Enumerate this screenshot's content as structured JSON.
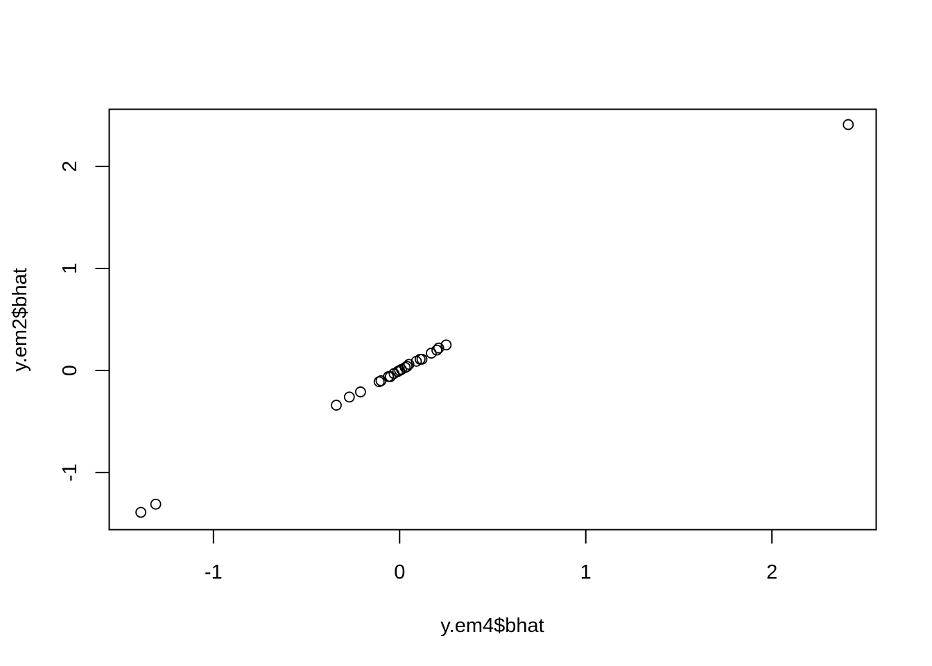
{
  "chart_data": {
    "type": "scatter",
    "title": "",
    "xlabel": "y.em4$bhat",
    "ylabel": "y.em2$bhat",
    "xlim": [
      -1.56,
      2.56
    ],
    "ylim": [
      -1.56,
      2.56
    ],
    "x_ticks": [
      {
        "value": -1,
        "label": "-1"
      },
      {
        "value": 0,
        "label": "0"
      },
      {
        "value": 1,
        "label": "1"
      },
      {
        "value": 2,
        "label": "2"
      }
    ],
    "y_ticks": [
      {
        "value": -1,
        "label": "-1"
      },
      {
        "value": 0,
        "label": "0"
      },
      {
        "value": 1,
        "label": "1"
      },
      {
        "value": 2,
        "label": "2"
      }
    ],
    "grid": false,
    "legend": "none",
    "marker": "open-circle",
    "color": "#000000",
    "points": [
      {
        "x": -1.39,
        "y": -1.39
      },
      {
        "x": -1.31,
        "y": -1.31
      },
      {
        "x": -0.34,
        "y": -0.34
      },
      {
        "x": -0.27,
        "y": -0.26
      },
      {
        "x": -0.21,
        "y": -0.21
      },
      {
        "x": -0.11,
        "y": -0.11
      },
      {
        "x": -0.1,
        "y": -0.1
      },
      {
        "x": -0.06,
        "y": -0.06
      },
      {
        "x": -0.05,
        "y": -0.06
      },
      {
        "x": -0.03,
        "y": -0.03
      },
      {
        "x": -0.01,
        "y": -0.01
      },
      {
        "x": 0.0,
        "y": 0.0
      },
      {
        "x": 0.01,
        "y": 0.01
      },
      {
        "x": 0.03,
        "y": 0.03
      },
      {
        "x": 0.04,
        "y": 0.04
      },
      {
        "x": 0.05,
        "y": 0.06
      },
      {
        "x": 0.09,
        "y": 0.09
      },
      {
        "x": 0.11,
        "y": 0.11
      },
      {
        "x": 0.12,
        "y": 0.11
      },
      {
        "x": 0.17,
        "y": 0.17
      },
      {
        "x": 0.2,
        "y": 0.2
      },
      {
        "x": 0.21,
        "y": 0.22
      },
      {
        "x": 0.25,
        "y": 0.25
      },
      {
        "x": 2.41,
        "y": 2.41
      }
    ]
  }
}
